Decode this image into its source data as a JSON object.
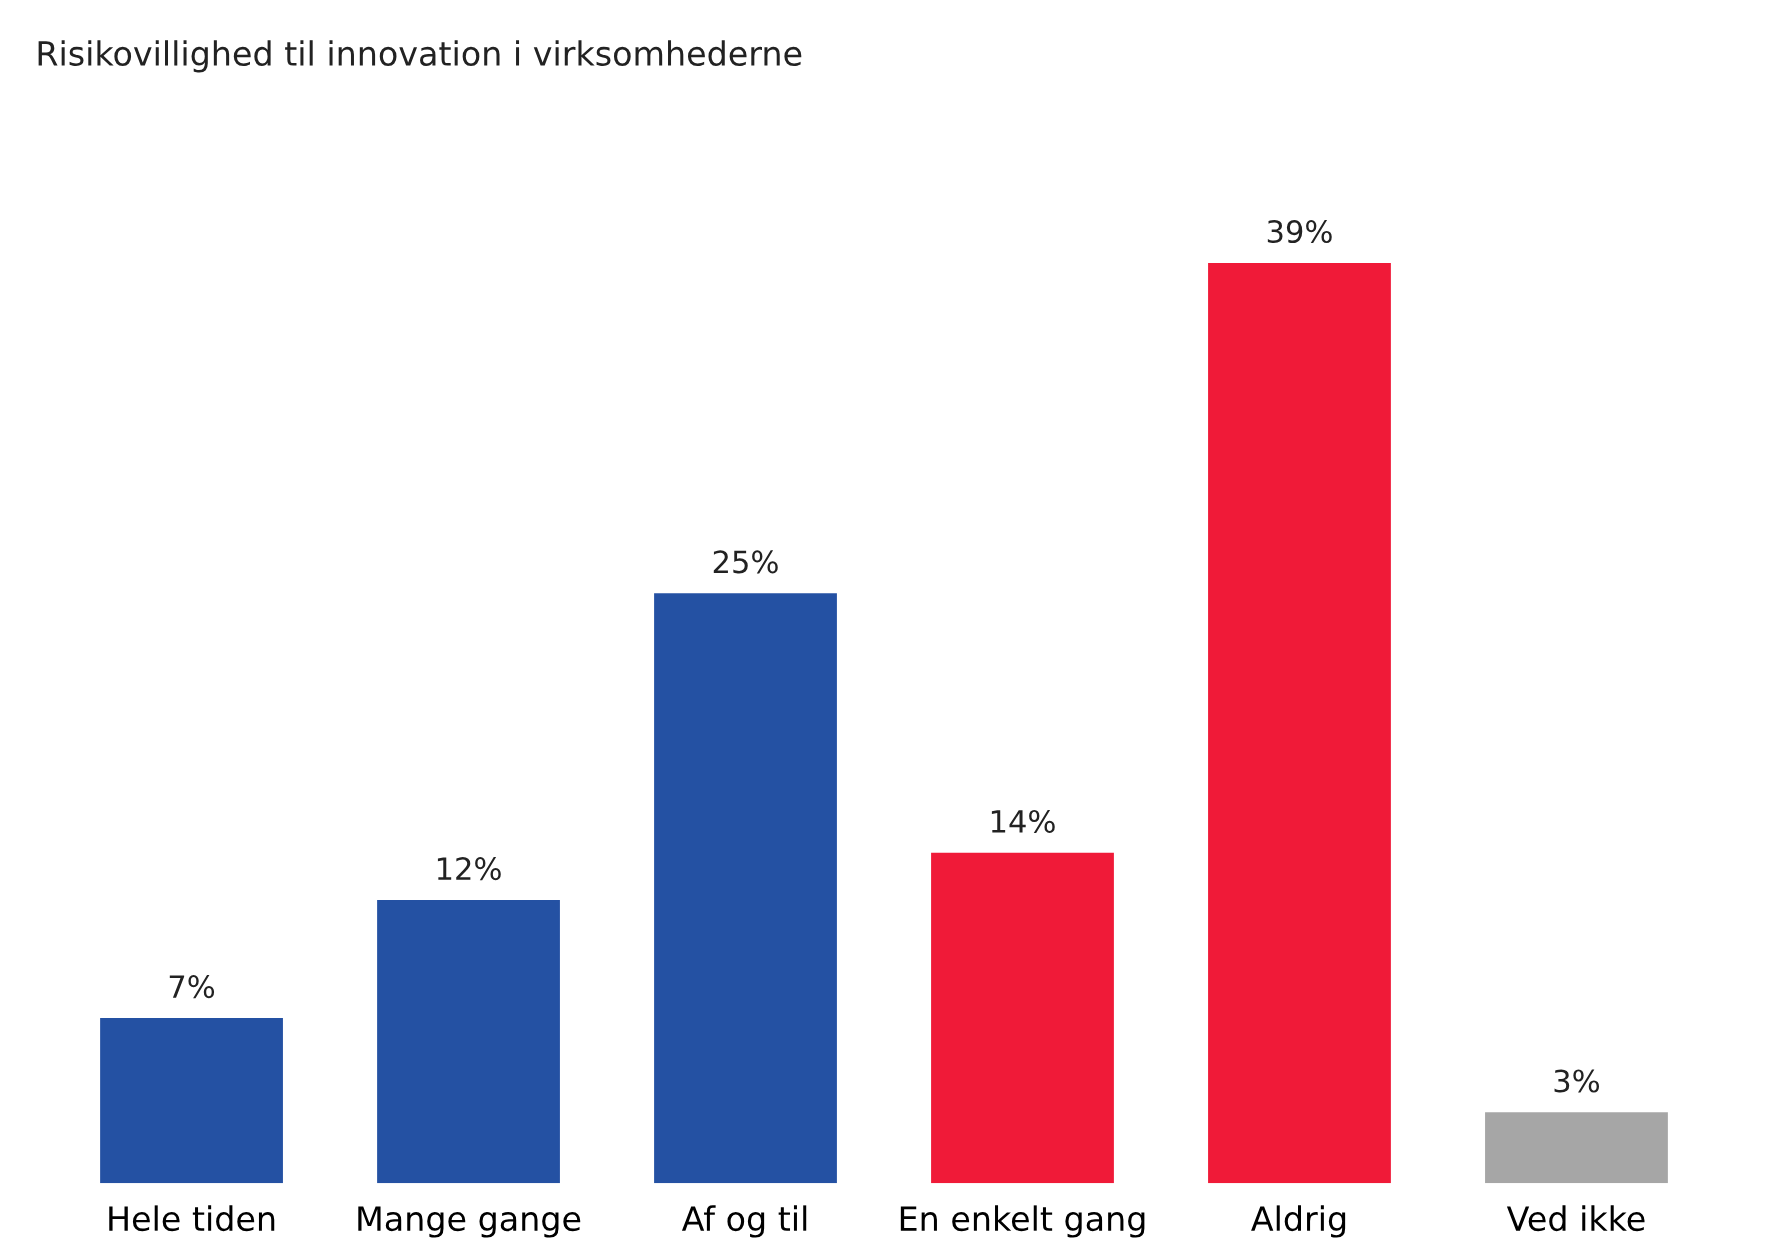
{
  "chart_data": {
    "type": "bar",
    "title": "Risikovillighed til innovation i virksomhederne",
    "categories": [
      "Hele tiden",
      "Mange gange",
      "Af og til",
      "En enkelt gang",
      "Aldrig",
      "Ved ikke"
    ],
    "values": [
      7,
      12,
      25,
      14,
      39,
      3
    ],
    "value_labels": [
      "7%",
      "12%",
      "25%",
      "14%",
      "39%",
      "3%"
    ],
    "colors": [
      "#2451a3",
      "#2451a3",
      "#2451a3",
      "#f01a38",
      "#f01a38",
      "#a6a6a6"
    ],
    "grid": false
  }
}
